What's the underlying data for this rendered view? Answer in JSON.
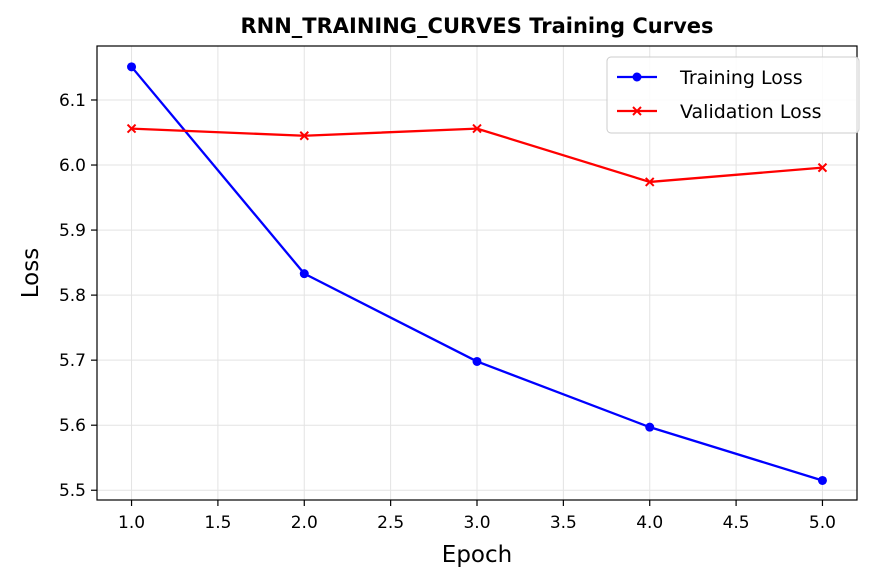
{
  "chart_data": {
    "type": "line",
    "title": "RNN_TRAINING_CURVES Training Curves",
    "xlabel": "Epoch",
    "ylabel": "Loss",
    "x": [
      1.0,
      2.0,
      3.0,
      4.0,
      5.0
    ],
    "xlim": [
      0.8,
      5.2
    ],
    "ylim": [
      5.485,
      6.183
    ],
    "xticks": [
      1.0,
      1.5,
      2.0,
      2.5,
      3.0,
      3.5,
      4.0,
      4.5,
      5.0
    ],
    "xtick_labels": [
      "1.0",
      "1.5",
      "2.0",
      "2.5",
      "3.0",
      "3.5",
      "4.0",
      "4.5",
      "5.0"
    ],
    "yticks": [
      5.5,
      5.6,
      5.7,
      5.8,
      5.9,
      6.0,
      6.1
    ],
    "ytick_labels": [
      "5.5",
      "5.6",
      "5.7",
      "5.8",
      "5.9",
      "6.0",
      "6.1"
    ],
    "grid": true,
    "legend_position": "top-right",
    "series": [
      {
        "name": "Training Loss",
        "color": "#0000ff",
        "marker": "circle",
        "values": [
          6.151,
          5.833,
          5.698,
          5.597,
          5.515
        ]
      },
      {
        "name": "Validation Loss",
        "color": "#ff0000",
        "marker": "x",
        "values": [
          6.056,
          6.045,
          6.056,
          5.974,
          5.996
        ]
      }
    ]
  }
}
